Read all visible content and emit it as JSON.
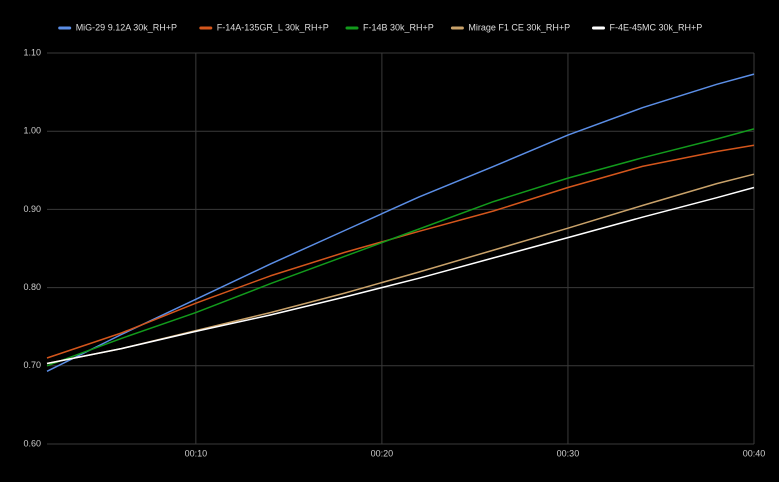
{
  "chart_data": {
    "type": "line",
    "x": [
      2,
      6,
      10,
      14,
      18,
      22,
      26,
      30,
      34,
      38,
      40
    ],
    "xlim": [
      2,
      40
    ],
    "xticks": [
      {
        "value": 10,
        "label": "00:10"
      },
      {
        "value": 20,
        "label": "00:20"
      },
      {
        "value": 30,
        "label": "00:30"
      },
      {
        "value": 40,
        "label": "00:40"
      }
    ],
    "ylim": [
      0.6,
      1.1
    ],
    "yticks": [
      {
        "value": 0.6,
        "label": "0.60"
      },
      {
        "value": 0.7,
        "label": "0.70"
      },
      {
        "value": 0.8,
        "label": "0.80"
      },
      {
        "value": 0.9,
        "label": "0.90"
      },
      {
        "value": 1.0,
        "label": "1.00"
      },
      {
        "value": 1.1,
        "label": "1.10"
      }
    ],
    "grid": true,
    "legend": "top",
    "series": [
      {
        "name": "MiG-29 9.12A 30k_RH+P",
        "color": "#5b8ee6",
        "values": [
          0.693,
          0.74,
          0.785,
          0.83,
          0.873,
          0.916,
          0.955,
          0.995,
          1.03,
          1.06,
          1.073
        ]
      },
      {
        "name": "F-14A-135GR_L 30k_RH+P",
        "color": "#d4561c",
        "values": [
          0.71,
          0.742,
          0.78,
          0.815,
          0.845,
          0.872,
          0.898,
          0.928,
          0.955,
          0.974,
          0.982
        ]
      },
      {
        "name": "F-14B 30k_RH+P",
        "color": "#129a1c",
        "values": [
          0.7,
          0.735,
          0.768,
          0.805,
          0.84,
          0.875,
          0.91,
          0.94,
          0.966,
          0.99,
          1.003
        ]
      },
      {
        "name": "Mirage F1 CE 30k_RH+P",
        "color": "#c9a26a",
        "values": [
          0.703,
          0.722,
          0.745,
          0.768,
          0.793,
          0.82,
          0.848,
          0.876,
          0.905,
          0.933,
          0.945
        ]
      },
      {
        "name": "F-4E-45MC 30k_RH+P",
        "color": "#ffffff",
        "values": [
          0.703,
          0.722,
          0.744,
          0.765,
          0.788,
          0.812,
          0.838,
          0.864,
          0.89,
          0.915,
          0.928
        ]
      }
    ]
  }
}
